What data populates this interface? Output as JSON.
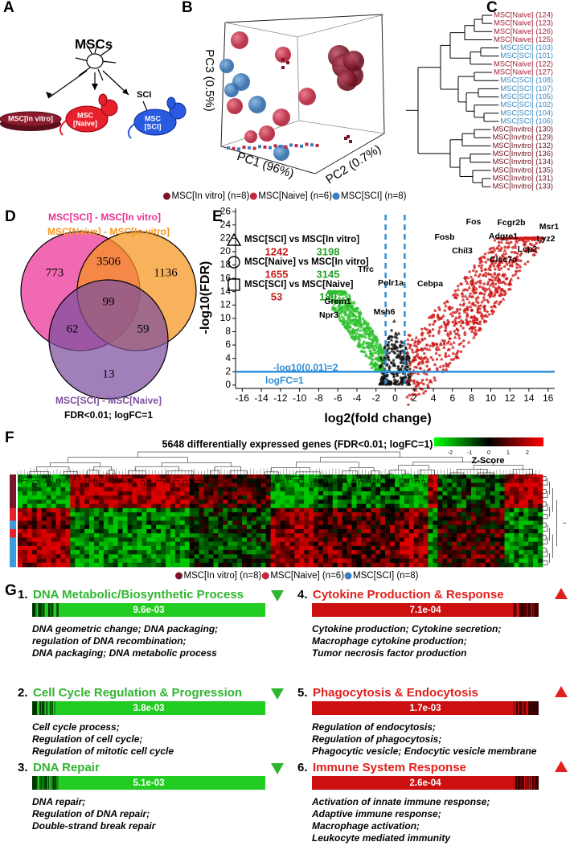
{
  "panel_labels": [
    "A",
    "B",
    "C",
    "D",
    "E",
    "F",
    "G"
  ],
  "panel_a": {
    "title": "MSCs",
    "injury": "SCI",
    "in_vitro_label": "MSC[In vitro]",
    "naive_label": [
      "MSC",
      "[Naive]"
    ],
    "sci_label": [
      "MSC",
      "[SCI]"
    ]
  },
  "panel_b": {
    "pc1": "PC1 (96%)",
    "pc2": "PC2 (0.7%)",
    "pc3": "PC3 (0.5%)",
    "legend": [
      {
        "label": "MSC[In vitro] (n=8)",
        "color": "#7a1428"
      },
      {
        "label": "MSC[Naive] (n=6)",
        "color": "#c4283e"
      },
      {
        "label": "MSC[SCI] (n=8)",
        "color": "#3b7ec2"
      }
    ]
  },
  "panel_c": {
    "leaves": [
      {
        "label": "MSC[Naive] (124)",
        "color": "#a3233a"
      },
      {
        "label": "MSC[Naive] (123)",
        "color": "#a3233a"
      },
      {
        "label": "MSC[Naive] (126)",
        "color": "#a3233a"
      },
      {
        "label": "MSC[Naive] (125)",
        "color": "#a3233a"
      },
      {
        "label": "MSC[SCI] (103)",
        "color": "#3b8ac4"
      },
      {
        "label": "MSC[SCI] (101)",
        "color": "#3b8ac4"
      },
      {
        "label": "MSC[Naive] (122)",
        "color": "#a3233a"
      },
      {
        "label": "MSC[Naive] (127)",
        "color": "#a3233a"
      },
      {
        "label": "MSC[SCI] (108)",
        "color": "#3b8ac4"
      },
      {
        "label": "MSC[SCI] (107)",
        "color": "#3b8ac4"
      },
      {
        "label": "MSC[SCI] (105)",
        "color": "#3b8ac4"
      },
      {
        "label": "MSC[SCI] (102)",
        "color": "#3b8ac4"
      },
      {
        "label": "MSC[SCI] (104)",
        "color": "#3b8ac4"
      },
      {
        "label": "MSC[SCI] (106)",
        "color": "#3b8ac4"
      },
      {
        "label": "MSC[Invitro] (130)",
        "color": "#6e1222"
      },
      {
        "label": "MSC[Invitro] (129)",
        "color": "#6e1222"
      },
      {
        "label": "MSC[Invitro] (132)",
        "color": "#6e1222"
      },
      {
        "label": "MSC[Invitro] (136)",
        "color": "#6e1222"
      },
      {
        "label": "MSC[Invitro] (134)",
        "color": "#6e1222"
      },
      {
        "label": "MSC[Invitro] (135)",
        "color": "#6e1222"
      },
      {
        "label": "MSC[Invitro] (131)",
        "color": "#6e1222"
      },
      {
        "label": "MSC[Invitro] (133)",
        "color": "#6e1222"
      }
    ]
  },
  "panel_d": {
    "sets": [
      {
        "label": "MSC[SCI] - MSC[In vitro]",
        "color": "#ec2f95"
      },
      {
        "label": "MSC[Naive] - MSC[In vitro]",
        "color": "#f7941d"
      },
      {
        "label": "MSC[SCI] - MSC[Naive]",
        "color": "#7d4f9e"
      }
    ],
    "regions": [
      773,
      3506,
      1136,
      99,
      62,
      59,
      13
    ],
    "note": "FDR<0.01; logFC=1"
  },
  "panel_e": {
    "y_label": "-log10(FDR)",
    "x_label": "log2(fold change)",
    "xlim": [
      -16.7,
      16.7
    ],
    "ylim": [
      -0.5,
      26.5
    ],
    "xticks": [
      -16,
      -14,
      -12,
      -10,
      -8,
      -6,
      -4,
      -2,
      0,
      2,
      4,
      6,
      8,
      10,
      12,
      14,
      16
    ],
    "yticks": [
      0,
      2,
      4,
      6,
      8,
      10,
      12,
      14,
      16,
      18,
      20,
      22,
      24,
      26
    ],
    "hline": 2,
    "vlines": [
      -1,
      1
    ],
    "hline_label": "-log10(0.01)=2",
    "vline_label": "logFC=1",
    "legend": [
      {
        "label": "MSC[SCI] vs MSC[In vitro]",
        "up": 1242,
        "down": 3198
      },
      {
        "label": "MSC[Naive] vs MSC[In vitro]",
        "up": 1655,
        "down": 3145
      },
      {
        "label": "MSC[SCI] vs MSC[Naive]",
        "up": 53,
        "down": 180
      }
    ],
    "genes": [
      "Fos",
      "Fcgr2b",
      "Msr1",
      "Fosb",
      "Adgre1",
      "Lyz2",
      "Chil3",
      "Lcp2",
      "Clec7a",
      "Tfrc",
      "Polr1a",
      "Cebpa",
      "Grem1",
      "Msh6",
      "Npr3"
    ]
  },
  "panel_f": {
    "title": "5648 differentially expressed genes (FDR<0.01; logFC=1)",
    "zscore_ticks": [
      -2,
      -1,
      0,
      1,
      2
    ],
    "zscore_label": "Z-Score",
    "legend": [
      {
        "label": "MSC[In vitro] (n=8)",
        "color": "#7a1428"
      },
      {
        "label": "MSC[Naive] (n=6)",
        "color": "#c4283e"
      },
      {
        "label": "MSC[SCI] (n=8)",
        "color": "#3b7ec2"
      }
    ]
  },
  "panel_g": {
    "items": [
      {
        "number": "1.",
        "title": "DNA Metabolic/Biosynthetic Process",
        "pvalue": "9.6e-03",
        "direction": "down",
        "color": "#2fb52f",
        "terms": [
          "DNA geometric change; DNA packaging;",
          "regulation of DNA recombination;",
          "DNA packaging; DNA metabolic process"
        ]
      },
      {
        "number": "2.",
        "title": "Cell Cycle Regulation & Progression",
        "pvalue": "3.8e-03",
        "direction": "down",
        "color": "#2fb52f",
        "terms": [
          "Cell cycle process;",
          "Regulation of cell cycle;",
          "Regulation of mitotic cell cycle"
        ]
      },
      {
        "number": "3.",
        "title": "DNA Repair",
        "pvalue": "5.1e-03",
        "direction": "down",
        "color": "#2fb52f",
        "terms": [
          "DNA repair;",
          "Regulation of DNA repair;",
          "Double-strand break repair"
        ]
      },
      {
        "number": "4.",
        "title": "Cytokine Production & Response",
        "pvalue": "7.1e-04",
        "direction": "up",
        "color": "#e0201c",
        "terms": [
          "Cytokine production; Cytokine secretion;",
          "Macrophage cytokine production;",
          "Tumor necrosis factor production"
        ]
      },
      {
        "number": "5.",
        "title": "Phagocytosis & Endocytosis",
        "pvalue": "1.7e-03",
        "direction": "up",
        "color": "#e0201c",
        "terms": [
          "Regulation of endocytosis;",
          "Regulation of phagocytosis;",
          "Phagocytic vesicle; Endocytic vesicle membrane"
        ]
      },
      {
        "number": "6.",
        "title": "Immune System Response",
        "pvalue": "2.6e-04",
        "direction": "up",
        "color": "#e0201c",
        "terms": [
          "Activation of innate immune response;",
          "Adaptive immune response;",
          "Macrophage activation;",
          "Leukocyte mediated immunity"
        ]
      }
    ]
  }
}
